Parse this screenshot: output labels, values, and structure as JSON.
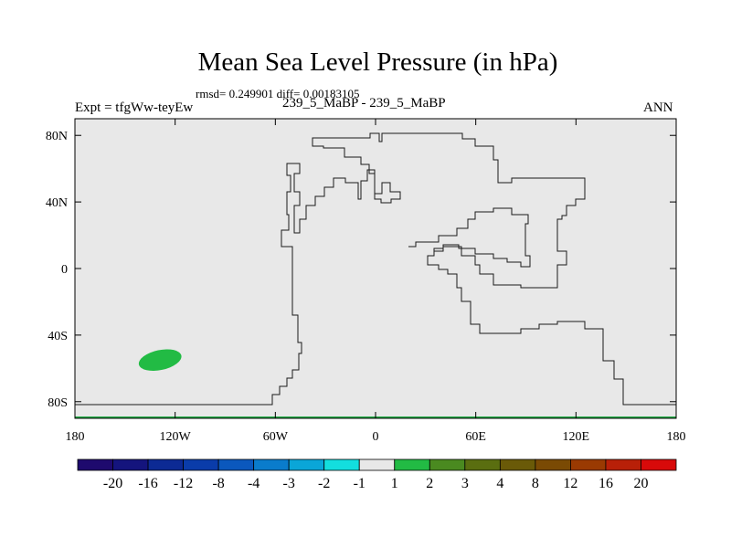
{
  "chart_data": {
    "type": "heatmap",
    "title": "Mean Sea Level Pressure (in hPa)",
    "stats_line": "rmsd= 0.249901 diff= 0.00183105",
    "experiment": "Expt = tfgWw-teyEw",
    "comparison": "239_5_MaBP - 239_5_MaBP",
    "season": "ANN",
    "x_ticks": [
      "180",
      "120W",
      "60W",
      "0",
      "60E",
      "120E",
      "180"
    ],
    "x_tick_values": [
      -180,
      -120,
      -60,
      0,
      60,
      120,
      180
    ],
    "y_ticks": [
      "80N",
      "40N",
      "0",
      "40S",
      "80S"
    ],
    "y_tick_values": [
      80,
      40,
      0,
      -40,
      -80
    ],
    "xlim": [
      -180,
      180
    ],
    "ylim": [
      -90,
      90
    ],
    "background_value_range": [
      -1,
      1
    ],
    "anomalies": [
      {
        "lon_center": -129,
        "lat_center": -55,
        "lon_extent": 26,
        "lat_extent": 12,
        "level": "1 to 2",
        "color": "#22bb44"
      }
    ],
    "colorbar": {
      "labels": [
        "-20",
        "-16",
        "-12",
        "-8",
        "-4",
        "-3",
        "-2",
        "-1",
        "1",
        "2",
        "3",
        "4",
        "8",
        "12",
        "16",
        "20"
      ],
      "colors": [
        "#1e0a6e",
        "#14147d",
        "#0c2a94",
        "#0a3caa",
        "#0b58bd",
        "#0a7ccc",
        "#0aa6d8",
        "#13dede",
        "#e8e8e8",
        "#22bb44",
        "#4a8a20",
        "#5a6e10",
        "#6a5a08",
        "#7a4a04",
        "#9a3a02",
        "#b82008",
        "#d80a0a"
      ]
    }
  }
}
